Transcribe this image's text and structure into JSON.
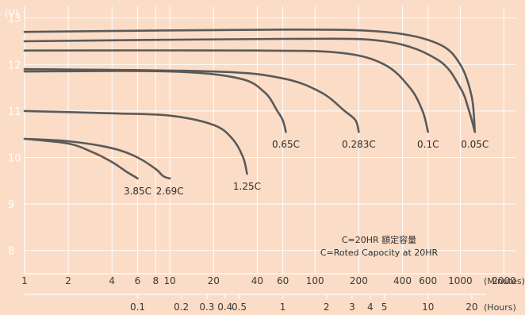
{
  "chart_data": {
    "type": "line",
    "ylabel": "(V)",
    "ylim": [
      7.5,
      13.25
    ],
    "y_ticks": [
      "8",
      "9",
      "10",
      "11",
      "12",
      "13"
    ],
    "x_minutes": {
      "unit": "(Minutes)",
      "ticks": [
        "1",
        "2",
        "4",
        "6",
        "8",
        "10",
        "20",
        "40",
        "60",
        "100",
        "200",
        "400",
        "600",
        "1000",
        "2000"
      ]
    },
    "x_hours": {
      "unit": "(Hours)",
      "ticks": [
        "0.1",
        "0.2",
        "0.3",
        "0.4",
        "0.5",
        "1",
        "2",
        "3",
        "4",
        "5",
        "10",
        "20"
      ]
    },
    "grid": true,
    "annotations": [
      "C=20HR 額定容量",
      "C=Roted Capocity at 20HR"
    ],
    "series": [
      {
        "name": "3.85C",
        "x": [
          1,
          2,
          3,
          4,
          5,
          6
        ],
        "y": [
          10.4,
          10.3,
          10.1,
          9.9,
          9.7,
          9.55
        ]
      },
      {
        "name": "2.69C",
        "x": [
          1,
          2,
          4,
          6,
          8,
          9,
          10
        ],
        "y": [
          10.4,
          10.35,
          10.2,
          10.0,
          9.75,
          9.6,
          9.55
        ]
      },
      {
        "name": "1.25C",
        "x": [
          1,
          4,
          10,
          20,
          27,
          32,
          34
        ],
        "y": [
          11.0,
          10.95,
          10.9,
          10.7,
          10.4,
          10.0,
          9.65
        ]
      },
      {
        "name": "0.65C",
        "x": [
          1,
          10,
          30,
          45,
          55,
          60,
          63
        ],
        "y": [
          11.85,
          11.85,
          11.7,
          11.4,
          11.0,
          10.8,
          10.55
        ]
      },
      {
        "name": "0.283C",
        "x": [
          1,
          20,
          60,
          110,
          160,
          190,
          200
        ],
        "y": [
          11.9,
          11.85,
          11.7,
          11.4,
          11.0,
          10.8,
          10.55
        ]
      },
      {
        "name": "0.1C",
        "x": [
          1,
          40,
          150,
          300,
          450,
          550,
          600
        ],
        "y": [
          12.3,
          12.3,
          12.25,
          12.0,
          11.5,
          11.0,
          10.55
        ]
      },
      {
        "name": "0.05C",
        "x": [
          1,
          60,
          300,
          700,
          1000,
          1150,
          1260
        ],
        "y": [
          12.5,
          12.55,
          12.5,
          12.1,
          11.5,
          11.0,
          10.55
        ]
      },
      {
        "x": [
          1,
          60,
          300,
          700,
          1000,
          1200,
          1260
        ],
        "y": [
          12.7,
          12.75,
          12.7,
          12.45,
          12.0,
          11.3,
          10.55
        ]
      }
    ]
  }
}
